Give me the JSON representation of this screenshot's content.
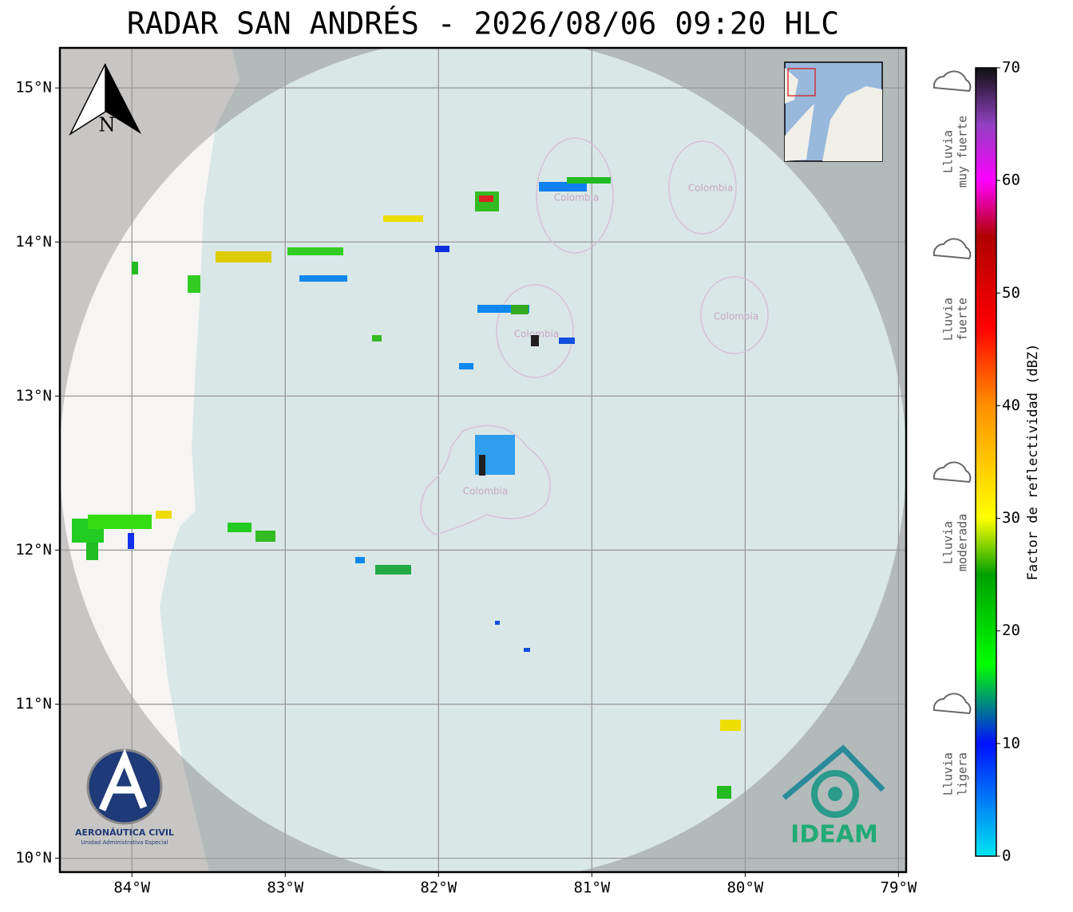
{
  "title": "RADAR SAN ANDRÉS - 2026/08/06 09:20 HLC",
  "map": {
    "xlim": [
      -84.47,
      -78.95
    ],
    "ylim": [
      9.91,
      15.26
    ],
    "grid": true,
    "xticks": [
      {
        "value": -84,
        "label": "84°W"
      },
      {
        "value": -83,
        "label": "83°W"
      },
      {
        "value": -82,
        "label": "82°W"
      },
      {
        "value": -81,
        "label": "81°W"
      },
      {
        "value": -80,
        "label": "80°W"
      },
      {
        "value": -79,
        "label": "79°W"
      }
    ],
    "yticks": [
      {
        "value": 10,
        "label": "10°N"
      },
      {
        "value": 11,
        "label": "11°N"
      },
      {
        "value": 12,
        "label": "12°N"
      },
      {
        "value": 13,
        "label": "13°N"
      },
      {
        "value": 14,
        "label": "14°N"
      },
      {
        "value": 15,
        "label": "15°N"
      }
    ],
    "north": "N",
    "places": [
      "Colombia",
      "Colombia",
      "Colombia",
      "Colombia",
      "Colombia"
    ]
  },
  "colorbar": {
    "label": "Factor de reflectividad (dBZ)",
    "lim": [
      0,
      70
    ],
    "ticks": [
      0,
      10,
      20,
      30,
      40,
      50,
      60,
      70
    ],
    "stops": [
      {
        "value": 0,
        "color": "#00e5f0"
      },
      {
        "value": 10,
        "color": "#0010ff"
      },
      {
        "value": 17,
        "color": "#00ff00"
      },
      {
        "value": 25,
        "color": "#00a000"
      },
      {
        "value": 30,
        "color": "#ffff00"
      },
      {
        "value": 40,
        "color": "#ff9000"
      },
      {
        "value": 47,
        "color": "#ff0000"
      },
      {
        "value": 55,
        "color": "#b00000"
      },
      {
        "value": 60,
        "color": "#ff00ff"
      },
      {
        "value": 65,
        "color": "#9040c0"
      },
      {
        "value": 70,
        "color": "#101010"
      }
    ]
  },
  "rain_levels": [
    [
      "Lluvia",
      "muy fuerte"
    ],
    [
      "Lluvia",
      "fuerte"
    ],
    [
      "Lluvia",
      "moderada"
    ],
    [
      "Lluvia",
      "ligera"
    ]
  ],
  "logos": {
    "aero_name": "AERONÁUTICA CIVIL",
    "aero_sub": "Unidad Administrativa Especial",
    "ideam": "IDEAM"
  }
}
